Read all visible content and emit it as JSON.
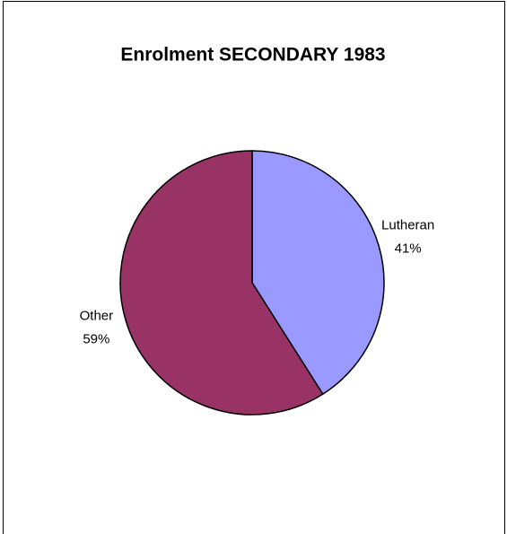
{
  "chart_data": {
    "type": "pie",
    "title": "Enrolment SECONDARY 1983",
    "categories": [
      "Lutheran",
      "Other"
    ],
    "values": [
      41,
      59
    ],
    "value_labels": [
      "41%",
      "59%"
    ],
    "colors": [
      "#9999ff",
      "#993366"
    ]
  }
}
